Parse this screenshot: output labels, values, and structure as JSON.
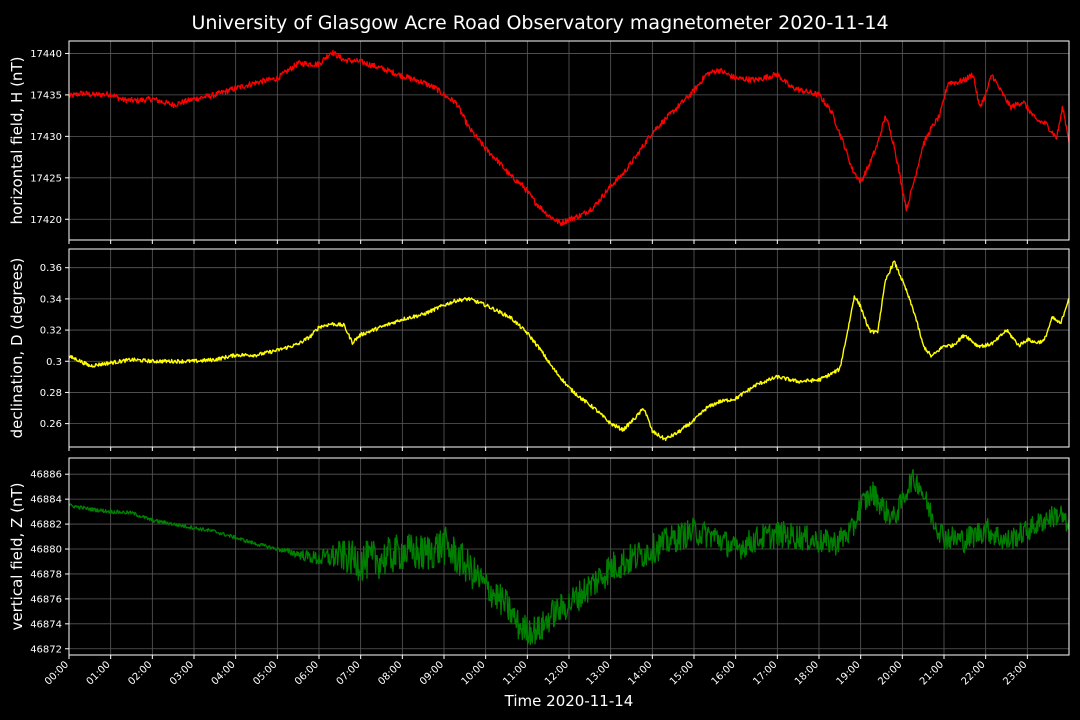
{
  "figure": {
    "title": "University of Glasgow Acre Road Observatory magnetometer 2020-11-14",
    "xlabel": "Time 2020-11-14",
    "background": "#000000",
    "grid_color": "#5a5a5a",
    "frame_color": "#ffffff"
  },
  "chart_data": [
    {
      "type": "line",
      "ylabel": "horizontal field, H (nT)",
      "color": "#ff0000",
      "noise": 0.35,
      "xlim": [
        0,
        24
      ],
      "ylim": [
        17417.5,
        17441.5
      ],
      "yticks": [
        17420,
        17425,
        17430,
        17435,
        17440
      ],
      "grid": true,
      "series": [
        {
          "x": [
            0,
            0.3,
            0.6,
            1,
            1.3,
            1.6,
            2,
            2.5,
            3,
            3.5,
            4,
            4.5,
            5,
            5.5,
            6,
            6.3,
            6.6,
            7,
            7.5,
            8,
            8.5,
            8.8,
            9,
            9.3,
            9.6,
            10,
            10.3,
            10.6,
            10.9,
            11.2,
            11.5,
            11.8,
            12,
            12.3,
            12.6,
            13,
            13.3,
            13.6,
            14,
            14.3,
            14.6,
            15,
            15.3,
            15.6,
            16,
            16.5,
            17,
            17.3,
            17.6,
            18,
            18.3,
            18.6,
            18.8,
            19,
            19.2,
            19.4,
            19.6,
            19.8,
            19.95,
            20.1,
            20.3,
            20.5,
            20.7,
            20.9,
            21.1,
            21.3,
            21.5,
            21.7,
            21.85,
            22,
            22.15,
            22.3,
            22.6,
            22.9,
            23.2,
            23.45,
            23.7,
            23.85,
            24
          ],
          "y": [
            17434.8,
            17435.2,
            17435,
            17435.1,
            17434.4,
            17434.3,
            17434.5,
            17433.8,
            17434.5,
            17435,
            17435.8,
            17436.5,
            17437,
            17438.8,
            17438.7,
            17440.2,
            17439.2,
            17439,
            17438.2,
            17437.3,
            17436.5,
            17435.8,
            17435,
            17434,
            17431,
            17428.5,
            17427,
            17425.2,
            17424,
            17422,
            17420.5,
            17419.5,
            17420,
            17420.5,
            17421.5,
            17424,
            17425.5,
            17427.5,
            17430.5,
            17432,
            17433.5,
            17435.5,
            17437.5,
            17438,
            17437,
            17436.8,
            17437.5,
            17436,
            17435.5,
            17435,
            17433,
            17429,
            17426,
            17424.5,
            17426.5,
            17429,
            17432.5,
            17429,
            17425,
            17421.2,
            17425,
            17429,
            17431,
            17432.5,
            17436.5,
            17436.5,
            17436.8,
            17437.5,
            17433.5,
            17435,
            17437.5,
            17436,
            17433.5,
            17434.2,
            17432,
            17431.5,
            17429.8,
            17433.5,
            17429.5
          ]
        }
      ]
    },
    {
      "type": "line",
      "ylabel": "declination, D (degrees)",
      "color": "#ffff00",
      "noise": 0.0012,
      "xlim": [
        0,
        24
      ],
      "ylim": [
        0.245,
        0.372
      ],
      "yticks": [
        0.26,
        0.28,
        0.3,
        0.32,
        0.34,
        0.36
      ],
      "grid": true,
      "series": [
        {
          "x": [
            0,
            0.2,
            0.5,
            1,
            1.5,
            2,
            2.5,
            3,
            3.5,
            4,
            4.5,
            5,
            5.5,
            5.8,
            6,
            6.3,
            6.6,
            6.8,
            7,
            7.5,
            8,
            8.5,
            9,
            9.3,
            9.6,
            10,
            10.3,
            10.6,
            11,
            11.3,
            11.6,
            12,
            12.3,
            12.6,
            13,
            13.3,
            13.6,
            13.8,
            14,
            14.3,
            14.6,
            15,
            15.3,
            15.6,
            16,
            16.5,
            17,
            17.5,
            18,
            18.3,
            18.5,
            18.7,
            18.85,
            19,
            19.2,
            19.4,
            19.5,
            19.6,
            19.8,
            19.95,
            20.1,
            20.3,
            20.5,
            20.7,
            21,
            21.2,
            21.5,
            21.8,
            22,
            22.2,
            22.5,
            22.8,
            23,
            23.2,
            23.4,
            23.6,
            23.8,
            24
          ],
          "y": [
            0.303,
            0.301,
            0.297,
            0.299,
            0.301,
            0.3,
            0.3,
            0.3,
            0.301,
            0.304,
            0.304,
            0.307,
            0.311,
            0.316,
            0.322,
            0.324,
            0.323,
            0.312,
            0.317,
            0.322,
            0.327,
            0.33,
            0.336,
            0.339,
            0.34,
            0.336,
            0.332,
            0.328,
            0.318,
            0.308,
            0.296,
            0.283,
            0.276,
            0.27,
            0.26,
            0.256,
            0.264,
            0.27,
            0.255,
            0.25,
            0.254,
            0.262,
            0.27,
            0.274,
            0.276,
            0.285,
            0.29,
            0.287,
            0.288,
            0.292,
            0.295,
            0.321,
            0.342,
            0.335,
            0.32,
            0.318,
            0.335,
            0.352,
            0.364,
            0.355,
            0.345,
            0.33,
            0.31,
            0.303,
            0.31,
            0.31,
            0.317,
            0.31,
            0.31,
            0.312,
            0.32,
            0.31,
            0.314,
            0.312,
            0.313,
            0.328,
            0.324,
            0.341
          ]
        }
      ]
    },
    {
      "type": "line",
      "ylabel": "vertical field, Z (nT)",
      "color": "#008000",
      "noise": 0.35,
      "noise_envelope": {
        "x": [
          0,
          5,
          6,
          6.5,
          7,
          8,
          9,
          10,
          11,
          12,
          13,
          14,
          15,
          16,
          17,
          18,
          19,
          20,
          21,
          22,
          23,
          24
        ],
        "y": [
          0.15,
          0.15,
          0.6,
          1.2,
          1.6,
          1.5,
          1.6,
          1.3,
          1.2,
          1.2,
          1.3,
          1.2,
          1.1,
          1,
          1.1,
          1,
          1,
          0.9,
          1,
          1,
          0.9,
          0.9
        ]
      },
      "xlim": [
        0,
        24
      ],
      "ylim": [
        46871.5,
        46887.3
      ],
      "yticks": [
        46872,
        46874,
        46876,
        46878,
        46880,
        46882,
        46884,
        46886
      ],
      "grid": true,
      "series": [
        {
          "x": [
            0,
            0.5,
            1,
            1.5,
            2,
            2.5,
            3,
            3.5,
            4,
            4.5,
            5,
            5.5,
            6,
            6.5,
            7,
            7.5,
            8,
            8.5,
            9,
            9.5,
            10,
            10.5,
            10.8,
            11,
            11.3,
            11.6,
            12,
            12.5,
            13,
            13.5,
            14,
            14.5,
            15,
            15.5,
            16,
            16.5,
            17,
            17.5,
            18,
            18.4,
            18.8,
            19,
            19.3,
            19.6,
            19.8,
            20,
            20.2,
            20.4,
            20.6,
            20.8,
            21,
            21.5,
            22,
            22.5,
            23,
            23.5,
            23.8,
            24
          ],
          "y": [
            46883.5,
            46883.2,
            46883,
            46882.9,
            46882.3,
            46882,
            46881.7,
            46881.4,
            46880.9,
            46880.4,
            46880,
            46879.6,
            46879.2,
            46879.5,
            46879,
            46879.2,
            46879.8,
            46879.6,
            46880.3,
            46878.8,
            46877,
            46875.5,
            46873.8,
            46873.5,
            46873.5,
            46874.8,
            46875.6,
            46877,
            46878.5,
            46879.2,
            46880,
            46880.8,
            46881.4,
            46881,
            46880,
            46880.8,
            46881.2,
            46881,
            46880.6,
            46880.5,
            46881.5,
            46883.5,
            46884.5,
            46883,
            46882.5,
            46883.8,
            46885.5,
            46885.3,
            46883.5,
            46882,
            46881,
            46880.7,
            46881.6,
            46880.6,
            46881.5,
            46882.5,
            46882.8,
            46881.5
          ]
        }
      ]
    }
  ],
  "xaxis": {
    "ticks": [
      0,
      1,
      2,
      3,
      4,
      5,
      6,
      7,
      8,
      9,
      10,
      11,
      12,
      13,
      14,
      15,
      16,
      17,
      18,
      19,
      20,
      21,
      22,
      23
    ],
    "tick_labels": [
      "00:00",
      "01:00",
      "02:00",
      "03:00",
      "04:00",
      "05:00",
      "06:00",
      "07:00",
      "08:00",
      "09:00",
      "10:00",
      "11:00",
      "12:00",
      "13:00",
      "14:00",
      "15:00",
      "16:00",
      "17:00",
      "18:00",
      "19:00",
      "20:00",
      "21:00",
      "22:00",
      "23:00"
    ]
  }
}
